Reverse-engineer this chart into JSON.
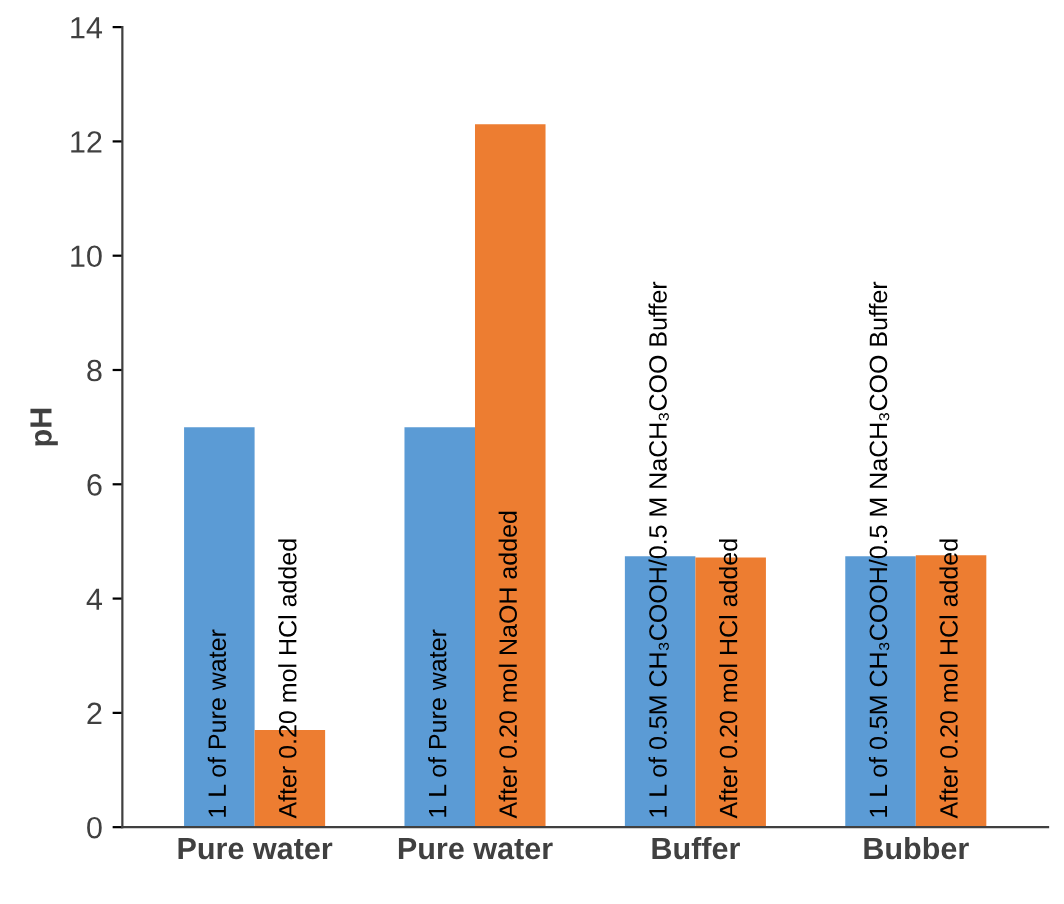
{
  "chart_data": {
    "type": "bar",
    "ylabel": "pH",
    "categories": [
      "Pure water",
      "Pure water",
      "Buffer",
      "Bubber"
    ],
    "ylim": [
      0,
      14
    ],
    "yticks": [
      0,
      2,
      4,
      6,
      8,
      10,
      12,
      14
    ],
    "grid": false,
    "legend": false,
    "series": [
      {
        "color": "#5b9bd5",
        "values": [
          7,
          7,
          4.74,
          4.74
        ]
      },
      {
        "color": "#ed7d31",
        "values": [
          1.7,
          12.3,
          4.72,
          4.76
        ]
      }
    ],
    "annotations": [
      "1 L of Pure water",
      "1 L of Pure water",
      "1 L of 0.5M CH₃COOH/0.5 M NaCH₃COO Buffer",
      "1 L of 0.5M CH₃COOH/0.5 M NaCH₃COO Buffer",
      "After 0.20 mol HCl added",
      "After 0.20 mol NaOH added",
      "After 0.20 mol HCl added",
      "After 0.20 mol HCl added"
    ]
  }
}
